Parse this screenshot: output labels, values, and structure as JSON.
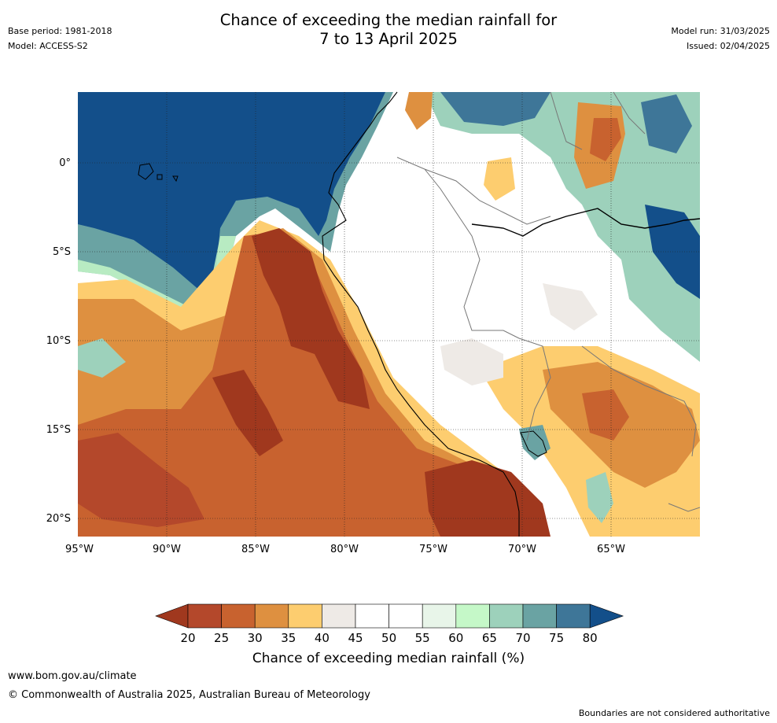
{
  "header": {
    "base_period": "Base period: 1981-2018",
    "model": "Model: ACCESS-S2",
    "title_line1": "Chance of exceeding the median rainfall for",
    "title_line2": "7 to 13 April 2025",
    "model_run": "Model run: 31/03/2025",
    "issued": "Issued: 02/04/2025"
  },
  "map": {
    "lat_labels": [
      "0°",
      "5°S",
      "10°S",
      "15°S",
      "20°S"
    ],
    "lon_labels": [
      "95°W",
      "90°W",
      "85°W",
      "80°W",
      "75°W",
      "70°W",
      "65°W"
    ],
    "extent": {
      "lon": [
        -95,
        -60
      ],
      "lat": [
        -21,
        4
      ]
    },
    "ocean_colour": "#134f8a",
    "grid": "dotted"
  },
  "colorbar": {
    "ticks": [
      "20",
      "25",
      "30",
      "35",
      "40",
      "45",
      "50",
      "55",
      "60",
      "65",
      "70",
      "75",
      "80"
    ],
    "colors": [
      "#a0381e",
      "#b4482b",
      "#c8622f",
      "#de9040",
      "#fdcd6f",
      "#eeeae6",
      "#ffffff",
      "#ffffff",
      "#e8f5e9",
      "#c5f8c8",
      "#9dd1bb",
      "#6aa3a3",
      "#3e7698",
      "#134f8a"
    ],
    "label": "Chance of exceeding median rainfall (%)"
  },
  "footer": {
    "url": "www.bom.gov.au/climate",
    "copyright": "© Commonwealth of Australia 2025, Australian Bureau of Meteorology",
    "disclaimer": "Boundaries are not considered authoritative"
  }
}
